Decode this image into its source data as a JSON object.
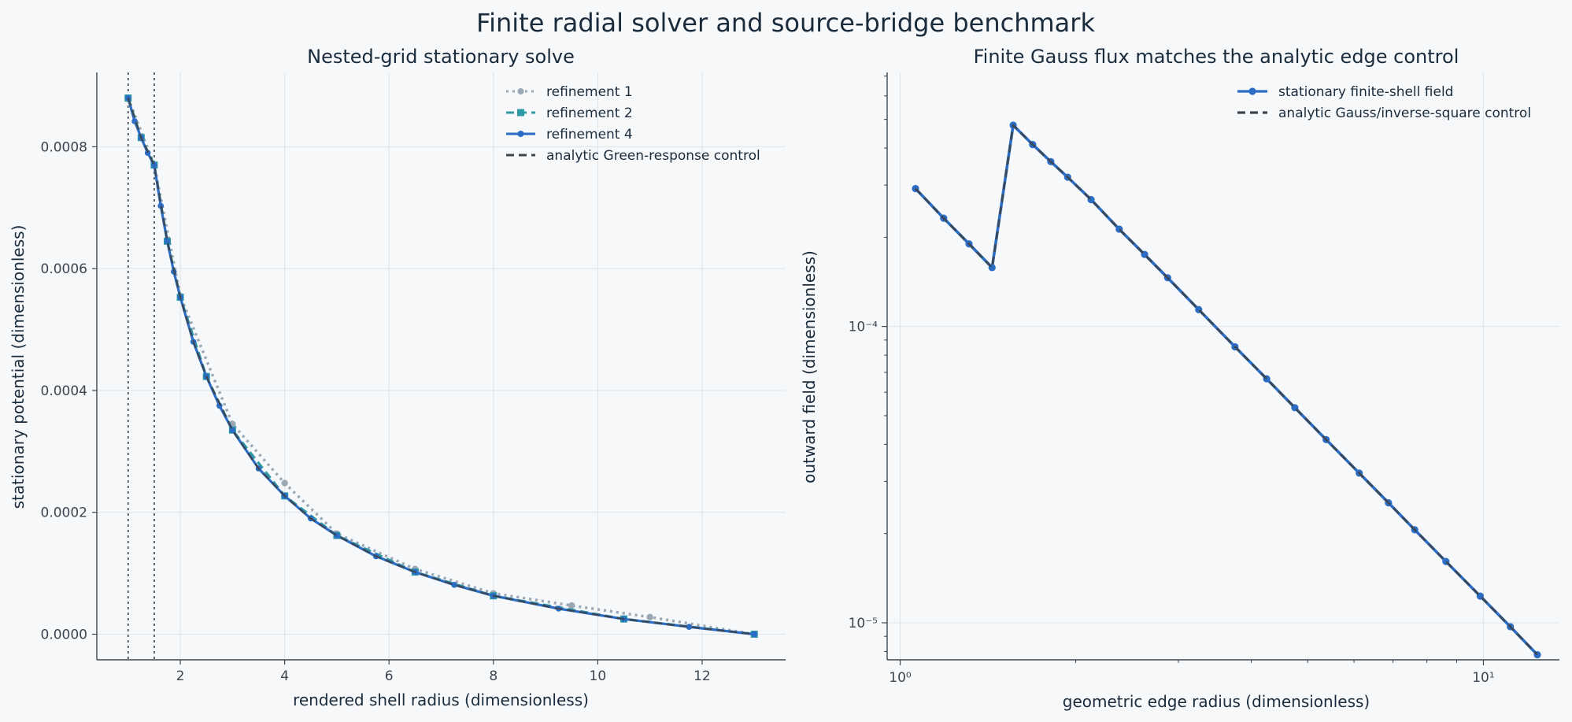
{
  "figure": {
    "title": "Finite radial solver and source-bridge benchmark",
    "background": "#f6f8fa"
  },
  "chart_data": [
    {
      "type": "line",
      "title": "Nested-grid stationary solve",
      "xlabel": "rendered shell radius (dimensionless)",
      "ylabel": "stationary potential (dimensionless)",
      "xlim": [
        0.4,
        13.6
      ],
      "ylim": [
        -4.2e-05,
        0.000922
      ],
      "xticks": [
        2,
        4,
        6,
        8,
        10,
        12
      ],
      "xtick_labels": [
        "2",
        "4",
        "6",
        "8",
        "10",
        "12"
      ],
      "yticks": [
        0,
        0.0002,
        0.0004,
        0.0006,
        0.0008
      ],
      "ytick_labels": [
        "0.0000",
        "0.0002",
        "0.0004",
        "0.0006",
        "0.0008"
      ],
      "grid": true,
      "legend_position": "top-right",
      "vlines": [
        1.0,
        1.5
      ],
      "series": [
        {
          "name": "refinement 1",
          "color": "#9aa7b4",
          "linestyle": "dotted",
          "marker": "circle",
          "x": [
            1.0,
            1.5,
            2.0,
            3.0,
            4.0,
            5.0,
            6.5,
            8.0,
            9.5,
            11.0,
            13.0
          ],
          "y": [
            0.00088,
            0.00077,
            0.000555,
            0.000345,
            0.000248,
            0.000165,
            0.000107,
            6.7e-05,
            4.7e-05,
            2.8e-05,
            0.0
          ]
        },
        {
          "name": "refinement 2",
          "color": "#2e9aa6",
          "linestyle": "dashed",
          "marker": "square",
          "x": [
            1.0,
            1.25,
            1.5,
            1.75,
            2.0,
            2.5,
            3.0,
            4.0,
            5.0,
            6.5,
            8.0,
            10.5,
            13.0
          ],
          "y": [
            0.00088,
            0.000815,
            0.00077,
            0.000645,
            0.000553,
            0.000423,
            0.000335,
            0.000227,
            0.000162,
            0.000102,
            6.3e-05,
            2.5e-05,
            0.0
          ]
        },
        {
          "name": "refinement 4",
          "color": "#2b6cc4",
          "linestyle": "solid",
          "marker": "circle",
          "x": [
            1.0,
            1.125,
            1.25,
            1.375,
            1.5,
            1.625,
            1.75,
            1.875,
            2.0,
            2.25,
            2.5,
            2.75,
            3.0,
            3.5,
            4.0,
            4.5,
            5.0,
            5.75,
            6.5,
            7.25,
            8.0,
            9.25,
            10.5,
            11.75,
            13.0
          ],
          "y": [
            0.00088,
            0.000842,
            0.000815,
            0.00079,
            0.00077,
            0.000703,
            0.000645,
            0.000595,
            0.000553,
            0.00048,
            0.000423,
            0.000375,
            0.000335,
            0.000272,
            0.000227,
            0.00019,
            0.000162,
            0.000128,
            0.000102,
            8.1e-05,
            6.3e-05,
            4.2e-05,
            2.5e-05,
            1.2e-05,
            0.0
          ]
        },
        {
          "name": "analytic Green-response control",
          "color": "#3c4650",
          "linestyle": "dashed",
          "marker": "none",
          "x": [
            1.0,
            1.25,
            1.5,
            1.75,
            2.0,
            2.25,
            2.5,
            3.0,
            3.5,
            4.0,
            4.5,
            5.0,
            5.75,
            6.5,
            7.25,
            8.0,
            9.25,
            10.5,
            11.75,
            13.0
          ],
          "y": [
            0.00088,
            0.000815,
            0.00077,
            0.000645,
            0.000553,
            0.00048,
            0.000423,
            0.000335,
            0.000272,
            0.000227,
            0.00019,
            0.000162,
            0.000128,
            0.000102,
            8.1e-05,
            6.3e-05,
            4.2e-05,
            2.5e-05,
            1.2e-05,
            0.0
          ]
        }
      ]
    },
    {
      "type": "line",
      "title": "Finite Gauss flux matches the analytic edge control",
      "xlabel": "geometric edge radius (dimensionless)",
      "ylabel": "outward field (dimensionless)",
      "xscale": "log",
      "yscale": "log",
      "xlim": [
        0.95,
        13.5
      ],
      "ylim": [
        7.5e-06,
        0.00072
      ],
      "xticks_major": [
        1,
        10
      ],
      "xtick_labels": [
        "10⁰",
        "10¹"
      ],
      "yticks_major": [
        1e-05,
        0.0001
      ],
      "ytick_labels": [
        "10⁻⁵",
        "10⁻⁴"
      ],
      "grid": true,
      "legend_position": "top-right",
      "series": [
        {
          "name": "stationary finite-shell field",
          "color": "#2b6cc4",
          "linestyle": "solid",
          "marker": "circle",
          "x": [
            1.0625,
            1.1875,
            1.3125,
            1.4375,
            1.5625,
            1.6875,
            1.8125,
            1.9375,
            2.125,
            2.375,
            2.625,
            2.875,
            3.25,
            3.75,
            4.25,
            4.75,
            5.375,
            6.125,
            6.875,
            7.625,
            8.625,
            9.875,
            11.125,
            12.375
          ],
          "y": [
            0.000292,
            0.000232,
            0.00019,
            0.000158,
            0.000478,
            0.000411,
            0.00036,
            0.000319,
            0.000268,
            0.000213,
            0.000175,
            0.000146,
            0.000114,
            8.54e-05,
            6.66e-05,
            5.32e-05,
            4.15e-05,
            3.2e-05,
            2.54e-05,
            2.06e-05,
            1.61e-05,
            1.23e-05,
            9.7e-06,
            7.8e-06
          ]
        },
        {
          "name": "analytic Gauss/inverse-square control",
          "color": "#3c4650",
          "linestyle": "dashed",
          "marker": "none",
          "x": [
            1.0625,
            1.1875,
            1.3125,
            1.4375,
            1.5625,
            1.6875,
            1.8125,
            1.9375,
            2.125,
            2.375,
            2.625,
            2.875,
            3.25,
            3.75,
            4.25,
            4.75,
            5.375,
            6.125,
            6.875,
            7.625,
            8.625,
            9.875,
            11.125,
            12.375
          ],
          "y": [
            0.000292,
            0.000232,
            0.00019,
            0.000158,
            0.000478,
            0.000411,
            0.00036,
            0.000319,
            0.000268,
            0.000213,
            0.000175,
            0.000146,
            0.000114,
            8.54e-05,
            6.66e-05,
            5.32e-05,
            4.15e-05,
            3.2e-05,
            2.54e-05,
            2.06e-05,
            1.61e-05,
            1.23e-05,
            9.7e-06,
            7.8e-06
          ]
        }
      ]
    }
  ]
}
